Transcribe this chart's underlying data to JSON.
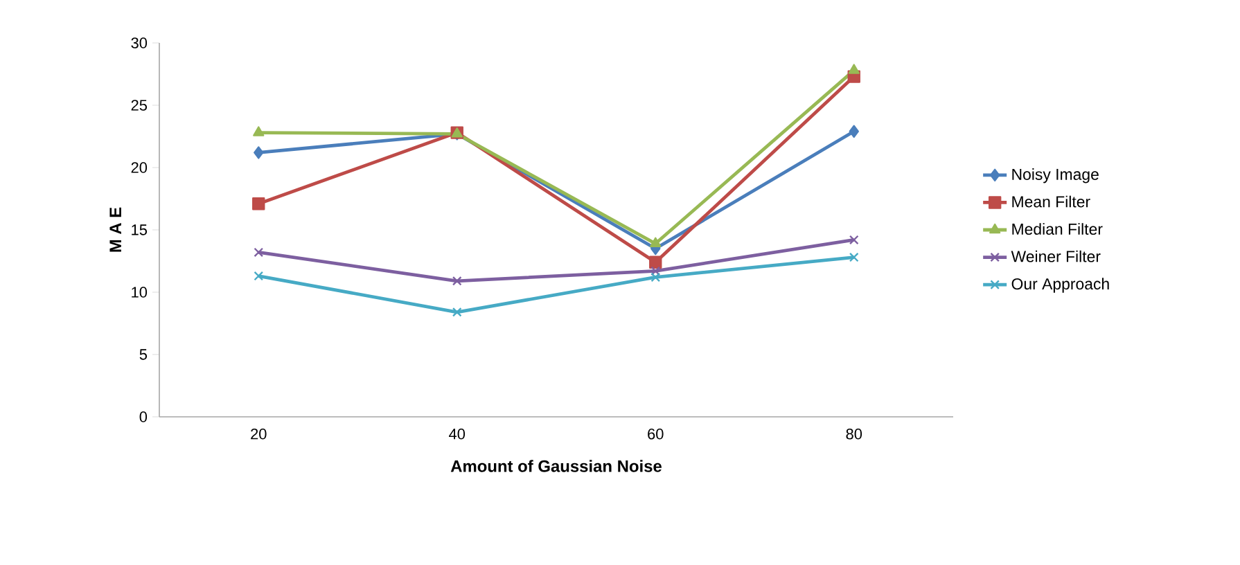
{
  "chart_data": {
    "type": "line",
    "xlabel": "Amount of Gaussian Noise",
    "ylabel": "M A E",
    "categories": [
      "20",
      "40",
      "60",
      "80"
    ],
    "series": [
      {
        "name": "Noisy Image",
        "color": "#4a7ebb",
        "marker": "diamond",
        "values": [
          21.2,
          22.7,
          13.5,
          22.9
        ]
      },
      {
        "name": "Mean Filter",
        "color": "#be4b48",
        "marker": "square",
        "values": [
          17.1,
          22.8,
          12.4,
          27.3
        ]
      },
      {
        "name": "Median Filter",
        "color": "#98b954",
        "marker": "triangle",
        "values": [
          22.8,
          22.7,
          13.9,
          27.8
        ]
      },
      {
        "name": "Weiner Filter",
        "color": "#7d5fa0",
        "marker": "cross",
        "values": [
          13.2,
          10.9,
          11.7,
          14.2
        ]
      },
      {
        "name": "Our Approach",
        "color": "#46aac5",
        "marker": "cross",
        "values": [
          11.3,
          8.4,
          11.2,
          12.8
        ]
      }
    ],
    "ylim": [
      0,
      30
    ],
    "yticks": [
      0,
      5,
      10,
      15,
      20,
      25,
      30
    ],
    "grid": false,
    "legend": "right",
    "line_style": "solid"
  }
}
